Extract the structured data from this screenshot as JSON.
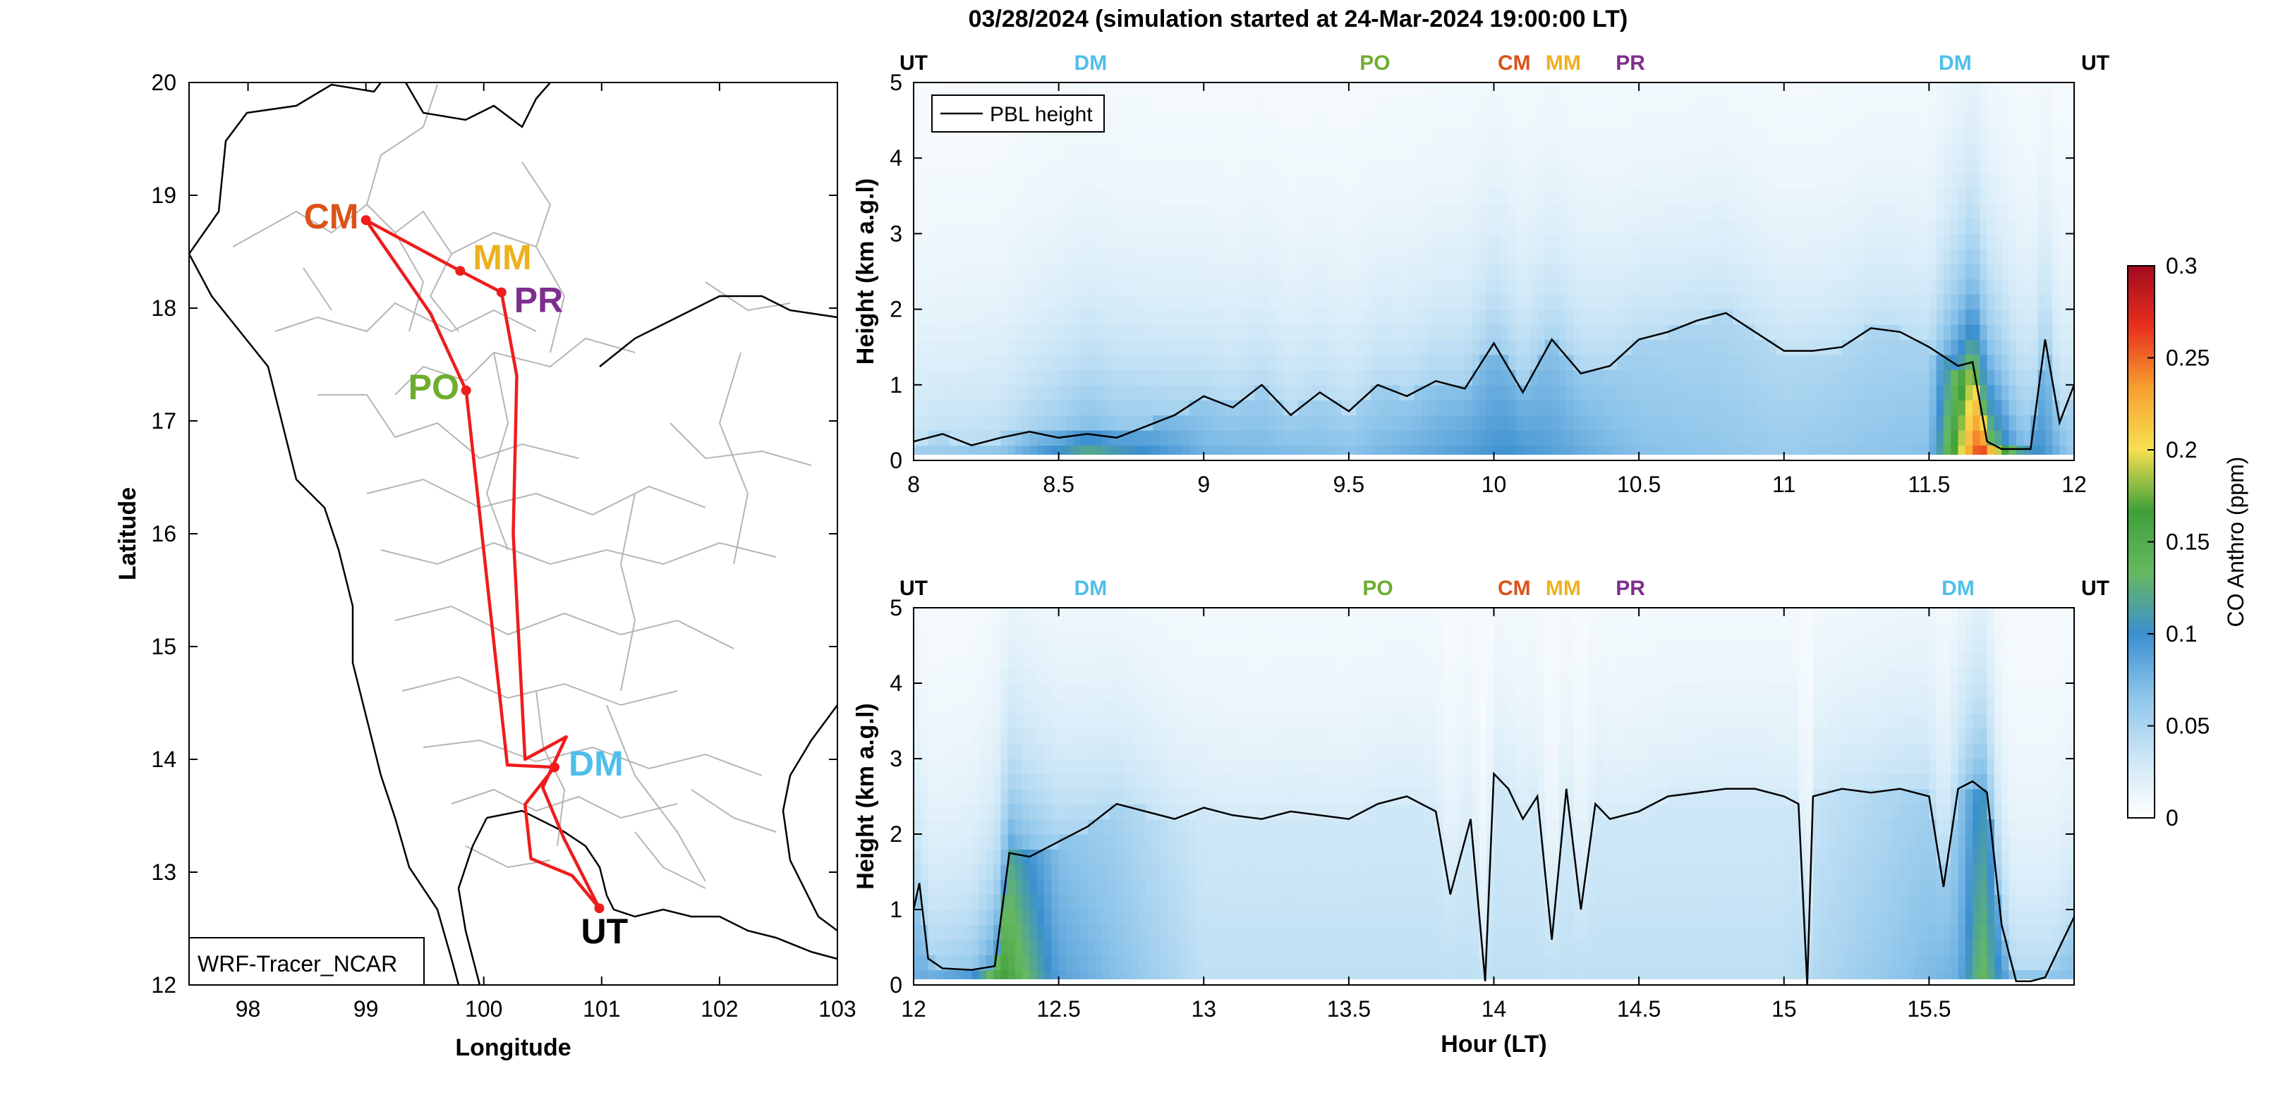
{
  "figure": {
    "title": "03/28/2024 (simulation started at 24-Mar-2024 19:00:00 LT)"
  },
  "colors": {
    "route": "#ee1c1c",
    "pbl_line": "#000000",
    "provinces": "#b5b5b5",
    "coastline": "#000000",
    "UT": "#000000",
    "DM": "#4fbfea",
    "PO": "#6fad2e",
    "CM": "#d95319",
    "MM": "#edb120",
    "PR": "#7e2f8e"
  },
  "colorbar": {
    "label": "CO Anthro (ppm)",
    "ticks": [
      "0",
      "0.05",
      "0.1",
      "0.15",
      "0.2",
      "0.25",
      "0.3"
    ],
    "range": [
      0,
      0.3
    ],
    "stops": [
      "#ffffff",
      "#cbe6f6",
      "#8cc4ea",
      "#3b8fd0",
      "#66b860",
      "#3fa03a",
      "#f6e050",
      "#f7a030",
      "#e8301e",
      "#a30a1e"
    ]
  },
  "chart_data": [
    {
      "type": "scatter",
      "name": "map",
      "xlabel": "Longitude",
      "ylabel": "Latitude",
      "xlim": [
        97.5,
        103
      ],
      "ylim": [
        12,
        20
      ],
      "xticks": [
        "98",
        "99",
        "100",
        "101",
        "102",
        "103"
      ],
      "yticks": [
        "12",
        "13",
        "14",
        "15",
        "16",
        "17",
        "18",
        "19",
        "20"
      ],
      "annotation": "WRF-Tracer_NCAR",
      "stations": [
        {
          "code": "CM",
          "lon": 99.0,
          "lat": 18.78
        },
        {
          "code": "MM",
          "lon": 99.8,
          "lat": 18.33
        },
        {
          "code": "PR",
          "lon": 100.15,
          "lat": 18.14
        },
        {
          "code": "PO",
          "lon": 99.85,
          "lat": 17.27
        },
        {
          "code": "DM",
          "lon": 100.6,
          "lat": 13.93
        },
        {
          "code": "UT",
          "lon": 100.98,
          "lat": 12.68
        }
      ],
      "route": [
        [
          100.98,
          12.68
        ],
        [
          100.75,
          12.97
        ],
        [
          100.4,
          13.12
        ],
        [
          100.35,
          13.6
        ],
        [
          100.6,
          13.93
        ],
        [
          100.2,
          13.95
        ],
        [
          99.85,
          17.27
        ],
        [
          99.55,
          17.95
        ],
        [
          99.0,
          18.78
        ],
        [
          99.8,
          18.33
        ],
        [
          100.15,
          18.14
        ],
        [
          100.28,
          17.4
        ],
        [
          100.25,
          16.0
        ],
        [
          100.35,
          14.0
        ],
        [
          100.7,
          14.2
        ],
        [
          100.5,
          13.75
        ],
        [
          100.68,
          13.3
        ],
        [
          100.98,
          12.68
        ]
      ]
    },
    {
      "type": "heatmap",
      "name": "curtain-top",
      "ylabel": "Height (km a.g.l)",
      "xlabel": "",
      "xlim": [
        8,
        12
      ],
      "ylim": [
        0,
        5
      ],
      "xticks": [
        "8",
        "8.5",
        "9",
        "9.5",
        "10",
        "10.5",
        "11",
        "11.5",
        "12"
      ],
      "yticks": [
        "0",
        "1",
        "2",
        "3",
        "4",
        "5"
      ],
      "legend": [
        "PBL height"
      ],
      "top_labels": [
        {
          "code": "UT",
          "hour": 8.0
        },
        {
          "code": "DM",
          "hour": 8.61
        },
        {
          "code": "PO",
          "hour": 9.59
        },
        {
          "code": "CM",
          "hour": 10.07
        },
        {
          "code": "MM",
          "hour": 10.3
        },
        {
          "code": "PR",
          "hour": 10.42
        },
        {
          "code": "DM",
          "hour": 11.59
        },
        {
          "code": "UT",
          "hour": 11.97
        }
      ],
      "pbl_height": {
        "hours": [
          8.0,
          8.1,
          8.2,
          8.3,
          8.4,
          8.5,
          8.6,
          8.7,
          8.8,
          8.9,
          9.0,
          9.1,
          9.2,
          9.3,
          9.4,
          9.5,
          9.6,
          9.7,
          9.8,
          9.9,
          10.0,
          10.1,
          10.2,
          10.3,
          10.4,
          10.5,
          10.6,
          10.7,
          10.8,
          10.9,
          11.0,
          11.1,
          11.2,
          11.3,
          11.4,
          11.5,
          11.6,
          11.65,
          11.7,
          11.75,
          11.8,
          11.85,
          11.9,
          11.95,
          12.0
        ],
        "km": [
          0.25,
          0.35,
          0.2,
          0.3,
          0.38,
          0.3,
          0.35,
          0.3,
          0.45,
          0.6,
          0.85,
          0.7,
          1.0,
          0.6,
          0.9,
          0.65,
          1.0,
          0.85,
          1.05,
          0.95,
          1.55,
          0.9,
          1.6,
          1.15,
          1.25,
          1.6,
          1.7,
          1.85,
          1.95,
          1.7,
          1.45,
          1.45,
          1.5,
          1.75,
          1.7,
          1.5,
          1.25,
          1.3,
          0.25,
          0.15,
          0.15,
          0.15,
          1.6,
          0.5,
          1.0
        ]
      },
      "concentration_ppm": [
        {
          "hour": 8.0,
          "surface": 0.06
        },
        {
          "hour": 8.3,
          "surface": 0.07
        },
        {
          "hour": 8.6,
          "surface": 0.13
        },
        {
          "hour": 9.0,
          "surface": 0.08
        },
        {
          "hour": 9.5,
          "surface": 0.07
        },
        {
          "hour": 10.05,
          "surface": 0.1
        },
        {
          "hour": 10.5,
          "surface": 0.07
        },
        {
          "hour": 11.0,
          "surface": 0.06
        },
        {
          "hour": 11.5,
          "surface": 0.07
        },
        {
          "hour": 11.68,
          "surface": 0.28
        },
        {
          "hour": 11.8,
          "surface": 0.13
        },
        {
          "hour": 12.0,
          "surface": 0.06
        }
      ]
    },
    {
      "type": "heatmap",
      "name": "curtain-bottom",
      "ylabel": "Height (km a.g.l)",
      "xlabel": "Hour (LT)",
      "xlim": [
        12,
        16
      ],
      "ylim": [
        0,
        5
      ],
      "xticks": [
        "12",
        "12.5",
        "13",
        "13.5",
        "14",
        "14.5",
        "15",
        "15.5"
      ],
      "yticks": [
        "0",
        "1",
        "2",
        "3",
        "4",
        "5"
      ],
      "top_labels": [
        {
          "code": "UT",
          "hour": 12.0
        },
        {
          "code": "DM",
          "hour": 12.61
        },
        {
          "code": "PO",
          "hour": 13.6
        },
        {
          "code": "CM",
          "hour": 14.07
        },
        {
          "code": "MM",
          "hour": 14.3
        },
        {
          "code": "PR",
          "hour": 14.42
        },
        {
          "code": "DM",
          "hour": 15.6
        },
        {
          "code": "UT",
          "hour": 15.98
        }
      ],
      "pbl_height": {
        "hours": [
          12.0,
          12.02,
          12.05,
          12.1,
          12.2,
          12.28,
          12.33,
          12.4,
          12.5,
          12.6,
          12.7,
          12.8,
          12.9,
          13.0,
          13.1,
          13.2,
          13.3,
          13.4,
          13.5,
          13.6,
          13.7,
          13.8,
          13.85,
          13.92,
          13.97,
          14.0,
          14.05,
          14.1,
          14.15,
          14.2,
          14.25,
          14.3,
          14.35,
          14.4,
          14.5,
          14.6,
          14.7,
          14.8,
          14.9,
          15.0,
          15.05,
          15.08,
          15.1,
          15.2,
          15.3,
          15.4,
          15.5,
          15.55,
          15.6,
          15.65,
          15.7,
          15.75,
          15.8,
          15.85,
          15.9,
          15.95,
          16.0
        ],
        "km": [
          1.0,
          1.35,
          0.35,
          0.22,
          0.2,
          0.25,
          1.75,
          1.7,
          1.9,
          2.1,
          2.4,
          2.3,
          2.2,
          2.35,
          2.25,
          2.2,
          2.3,
          2.25,
          2.2,
          2.4,
          2.5,
          2.3,
          1.2,
          2.2,
          0.05,
          2.8,
          2.6,
          2.2,
          2.5,
          0.6,
          2.6,
          1.0,
          2.4,
          2.2,
          2.3,
          2.5,
          2.55,
          2.6,
          2.6,
          2.5,
          2.4,
          0.0,
          2.5,
          2.6,
          2.55,
          2.6,
          2.5,
          1.3,
          2.6,
          2.7,
          2.55,
          0.8,
          0.05,
          0.05,
          0.1,
          0.5,
          0.9
        ]
      },
      "concentration_ppm": [
        {
          "hour": 12.0,
          "surface": 0.08
        },
        {
          "hour": 12.2,
          "surface": 0.1
        },
        {
          "hour": 12.3,
          "surface": 0.17
        },
        {
          "hour": 12.5,
          "surface": 0.09
        },
        {
          "hour": 13.0,
          "surface": 0.04
        },
        {
          "hour": 14.0,
          "surface": 0.04
        },
        {
          "hour": 15.0,
          "surface": 0.04
        },
        {
          "hour": 15.6,
          "surface": 0.08
        },
        {
          "hour": 15.68,
          "surface": 0.14
        },
        {
          "hour": 15.8,
          "surface": 0.07
        },
        {
          "hour": 16.0,
          "surface": 0.07
        }
      ]
    }
  ]
}
